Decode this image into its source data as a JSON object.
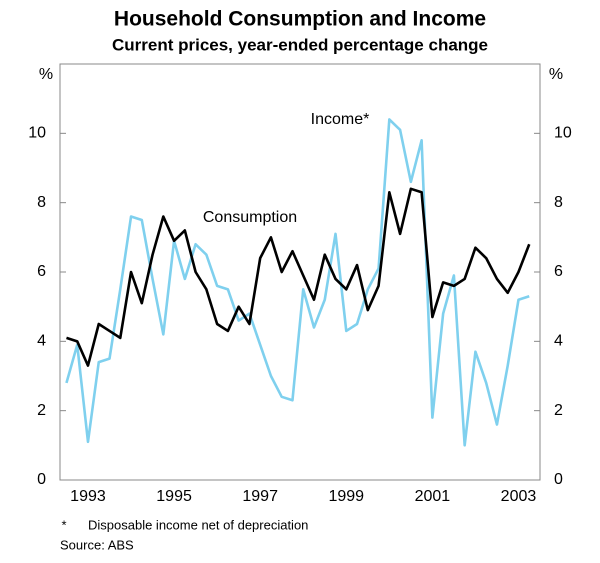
{
  "chart_data": {
    "type": "line",
    "title": "Household Consumption and Income",
    "subtitle": "Current prices, year-ended percentage change",
    "y_label": "%",
    "annotations": [
      "Income*",
      "Consumption"
    ],
    "footnote_marker": "*",
    "footnote": "Disposable income net of depreciation",
    "source": "Source: ABS",
    "x": [
      1993,
      1993.25,
      1993.5,
      1993.75,
      1994,
      1994.25,
      1994.5,
      1994.75,
      1995,
      1995.25,
      1995.5,
      1995.75,
      1996,
      1996.25,
      1996.5,
      1996.75,
      1997,
      1997.25,
      1997.5,
      1997.75,
      1998,
      1998.25,
      1998.5,
      1998.75,
      1999,
      1999.25,
      1999.5,
      1999.75,
      2000,
      2000.25,
      2000.5,
      2000.75,
      2001,
      2001.25,
      2001.5,
      2001.75,
      2002,
      2002.25,
      2002.5,
      2002.75,
      2003,
      2003.25,
      2003.5,
      2003.75
    ],
    "series": [
      {
        "name": "Income*",
        "color": "#7fd0ee",
        "values": [
          2.8,
          3.9,
          1.1,
          3.4,
          3.5,
          5.5,
          7.6,
          7.5,
          5.8,
          4.2,
          6.9,
          5.8,
          6.8,
          6.5,
          5.6,
          5.5,
          4.6,
          4.8,
          3.9,
          3.0,
          2.4,
          2.3,
          5.5,
          4.4,
          5.2,
          7.1,
          4.3,
          4.5,
          5.5,
          6.1,
          10.4,
          10.1,
          8.6,
          9.8,
          1.8,
          4.8,
          5.9,
          1.0,
          3.7,
          2.8,
          1.6,
          3.3,
          5.2,
          5.3
        ]
      },
      {
        "name": "Consumption",
        "color": "#000000",
        "values": [
          4.1,
          4.0,
          3.3,
          4.5,
          4.3,
          4.1,
          6.0,
          5.1,
          6.5,
          7.6,
          6.9,
          7.2,
          6.0,
          5.5,
          4.5,
          4.3,
          5.0,
          4.5,
          6.4,
          7.0,
          6.0,
          6.6,
          5.9,
          5.2,
          6.5,
          5.8,
          5.5,
          6.2,
          4.9,
          5.6,
          8.3,
          7.1,
          8.4,
          8.3,
          4.7,
          5.7,
          5.6,
          5.8,
          6.7,
          6.4,
          5.8,
          5.4,
          6.0,
          6.8
        ]
      }
    ],
    "xlim": [
      1992.85,
      2004.0
    ],
    "xticks": [
      {
        "value": 1993.5,
        "label": "1993"
      },
      {
        "value": 1995.5,
        "label": "1995"
      },
      {
        "value": 1997.5,
        "label": "1997"
      },
      {
        "value": 1999.5,
        "label": "1999"
      },
      {
        "value": 2001.5,
        "label": "2001"
      },
      {
        "value": 2003.5,
        "label": "2003"
      }
    ],
    "ylim": [
      0,
      12
    ],
    "yticks": [
      0,
      2,
      4,
      6,
      8,
      10
    ]
  }
}
